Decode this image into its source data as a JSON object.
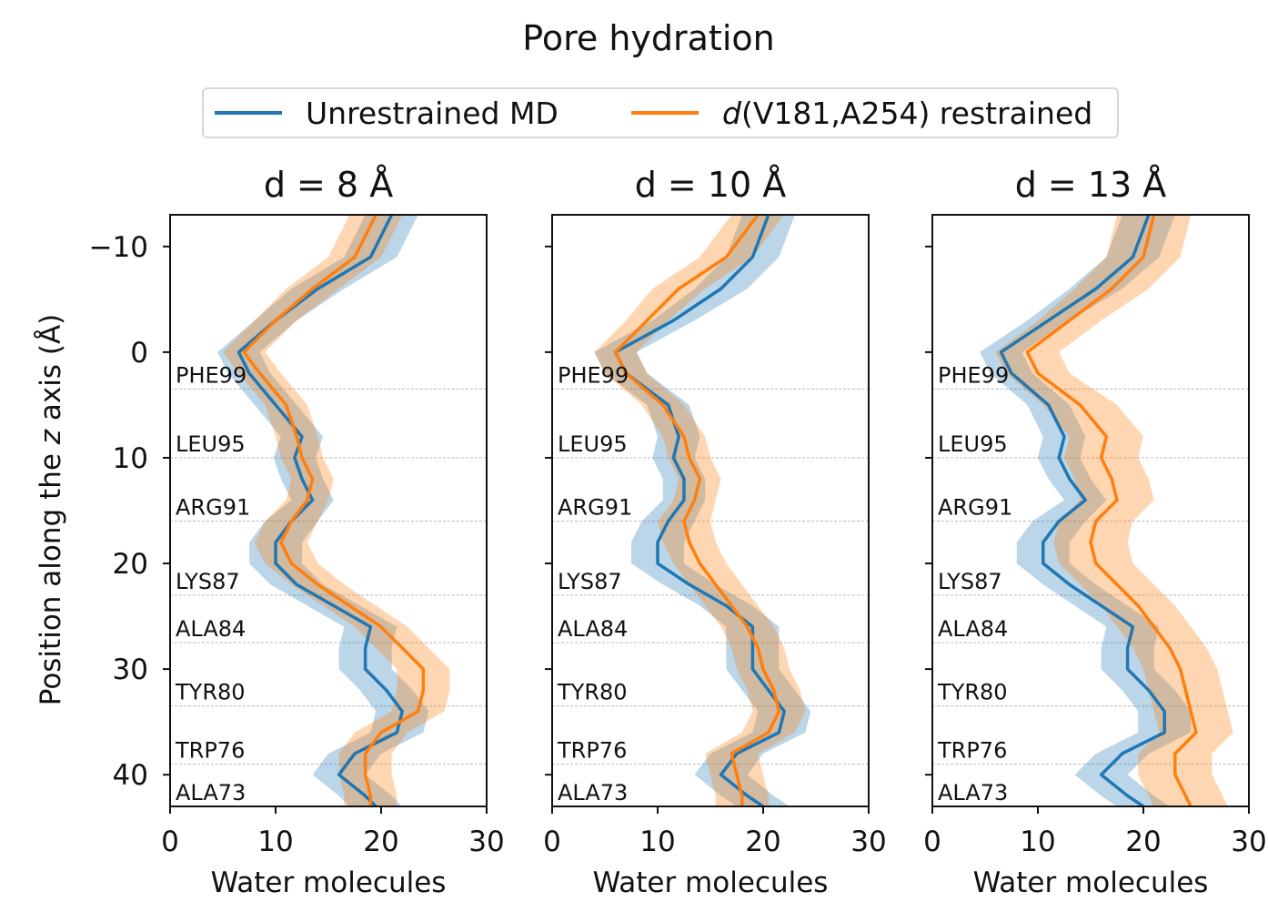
{
  "chart_data": {
    "type": "line",
    "title": "Pore hydration",
    "ylabel_parts": [
      "Position along the ",
      "z",
      " axis (Å)"
    ],
    "xlabel": "Water molecules",
    "xlim": [
      0,
      30
    ],
    "ylim": [
      43,
      -13
    ],
    "xticks": [
      0,
      10,
      20,
      30
    ],
    "yticks": [
      -10,
      0,
      10,
      20,
      30,
      40
    ],
    "ytick_labels": [
      "−10",
      "0",
      "10",
      "20",
      "30",
      "40"
    ],
    "legend_placement": "top-center",
    "legend": [
      {
        "name": "Unrestrained MD",
        "color": "#1f77b4"
      },
      {
        "name_prefix": "d",
        "name": "(V181,A254) restrained",
        "color": "#ff7f0e"
      }
    ],
    "residues": [
      {
        "name": "PHE99",
        "z": 3.5
      },
      {
        "name": "LEU95",
        "z": 10
      },
      {
        "name": "ARG91",
        "z": 16
      },
      {
        "name": "LYS87",
        "z": 23
      },
      {
        "name": "ALA84",
        "z": 27.5
      },
      {
        "name": "TYR80",
        "z": 33.5
      },
      {
        "name": "TRP76",
        "z": 39
      },
      {
        "name": "ALA73",
        "z": 43
      }
    ],
    "z": [
      -13,
      -9,
      -6,
      -3,
      0,
      2,
      5,
      8,
      10,
      12,
      14,
      16,
      18,
      20,
      22,
      24,
      26,
      28,
      30,
      32,
      34,
      36,
      38,
      40,
      42,
      43
    ],
    "panels": [
      {
        "title": "d = 8 Å",
        "series": [
          {
            "name": "Unrestrained MD",
            "color": "#1f77b4",
            "mean": [
              21,
              19,
              14,
              10,
              6.5,
              7.5,
              10,
              12.5,
              11.8,
              12.5,
              13.5,
              11.5,
              10,
              10,
              12,
              15.5,
              19,
              18.5,
              18.5,
              20.5,
              22,
              21.5,
              17.5,
              16,
              18.5,
              19.5
            ],
            "sd": [
              2.5,
              2.5,
              2.5,
              2,
              2,
              2,
              2,
              2,
              2,
              2,
              2,
              2.5,
              2.5,
              2.5,
              2.5,
              2.5,
              2.5,
              2.5,
              2.5,
              2.5,
              2.5,
              2.5,
              2.5,
              2.5,
              2.5,
              2.5
            ]
          },
          {
            "name": "d(V181,A254) restrained",
            "color": "#ff7f0e",
            "mean": [
              19.5,
              17.5,
              13.5,
              10,
              7,
              8.5,
              11,
              12,
              12.5,
              13.5,
              13,
              11.5,
              10.5,
              11.5,
              14,
              17,
              20,
              22,
              24,
              24,
              23.5,
              20,
              18.5,
              18.5,
              19,
              19
            ],
            "sd": [
              2.5,
              2.5,
              2.5,
              2,
              2,
              2,
              2,
              2,
              2,
              2,
              2,
              2.5,
              2.5,
              2.5,
              2.5,
              2.5,
              2.5,
              2.5,
              2.5,
              2.5,
              2.5,
              2.5,
              2.5,
              2.5,
              2.5,
              2.5
            ]
          }
        ]
      },
      {
        "title": "d = 10 Å",
        "series": [
          {
            "name": "Unrestrained MD",
            "color": "#1f77b4",
            "mean": [
              20.5,
              19,
              16,
              11.5,
              6,
              7,
              11,
              12,
              11.5,
              12.5,
              12.5,
              11,
              10,
              10,
              13,
              16.5,
              19,
              19,
              19,
              20.5,
              22,
              21.5,
              17.5,
              16,
              18.5,
              20
            ],
            "sd": [
              2.5,
              2.5,
              2.5,
              2,
              2,
              2,
              2,
              2,
              2,
              2,
              2,
              2.5,
              2.5,
              2.5,
              2.5,
              2.5,
              2.5,
              2.5,
              2.5,
              2.5,
              2.5,
              2.5,
              2.5,
              2.5,
              2.5,
              2.5
            ]
          },
          {
            "name": "d(V181,A254) restrained",
            "color": "#ff7f0e",
            "mean": [
              19.5,
              16.5,
              12,
              9,
              6,
              7,
              10.5,
              12.5,
              13,
              14,
              13.5,
              12.5,
              13,
              14,
              15.5,
              17,
              18.5,
              19.5,
              20,
              21,
              21.5,
              20.5,
              17,
              17.5,
              18,
              18
            ],
            "sd": [
              2.5,
              2.5,
              2.5,
              2,
              2,
              2,
              2,
              2,
              2,
              2,
              2,
              2.5,
              2.5,
              2.5,
              2.5,
              2.5,
              2.5,
              2.5,
              2.5,
              2.5,
              2.5,
              2.5,
              2.5,
              2.5,
              2.5,
              2.5
            ]
          }
        ]
      },
      {
        "title": "d = 13 Å",
        "series": [
          {
            "name": "Unrestrained MD",
            "color": "#1f77b4",
            "mean": [
              20.5,
              19,
              15.5,
              11,
              6.5,
              7.5,
              11,
              12.5,
              12,
              13,
              14.5,
              12,
              10.5,
              10.5,
              13,
              16,
              19,
              18.5,
              18.5,
              20.5,
              22,
              22,
              18,
              16,
              18.5,
              20
            ],
            "sd": [
              2.5,
              2.5,
              2.5,
              2,
              2,
              2,
              2,
              2,
              2,
              2,
              2,
              2.5,
              2.5,
              2.5,
              2.5,
              2.5,
              2.5,
              2.5,
              2.5,
              2.5,
              2.5,
              2.5,
              2.5,
              2.5,
              2.5,
              2.5
            ]
          },
          {
            "name": "d(V181,A254) restrained",
            "color": "#ff7f0e",
            "mean": [
              21,
              20,
              17,
              13,
              9,
              10,
              14,
              16.5,
              16,
              17,
              17.5,
              15.5,
              15,
              15.5,
              17.5,
              19.5,
              21,
              22.5,
              23.5,
              24,
              24.5,
              25,
              23,
              23,
              24,
              24.5
            ],
            "sd": [
              3.5,
              3.5,
              3.5,
              3,
              3,
              3,
              3.5,
              3.5,
              3.5,
              3.5,
              3.5,
              3.5,
              3.5,
              3.5,
              3.5,
              3.5,
              3.5,
              3.5,
              3.5,
              3.5,
              3.5,
              3.5,
              3.5,
              3.5,
              3.5,
              3.5
            ]
          }
        ]
      }
    ]
  }
}
